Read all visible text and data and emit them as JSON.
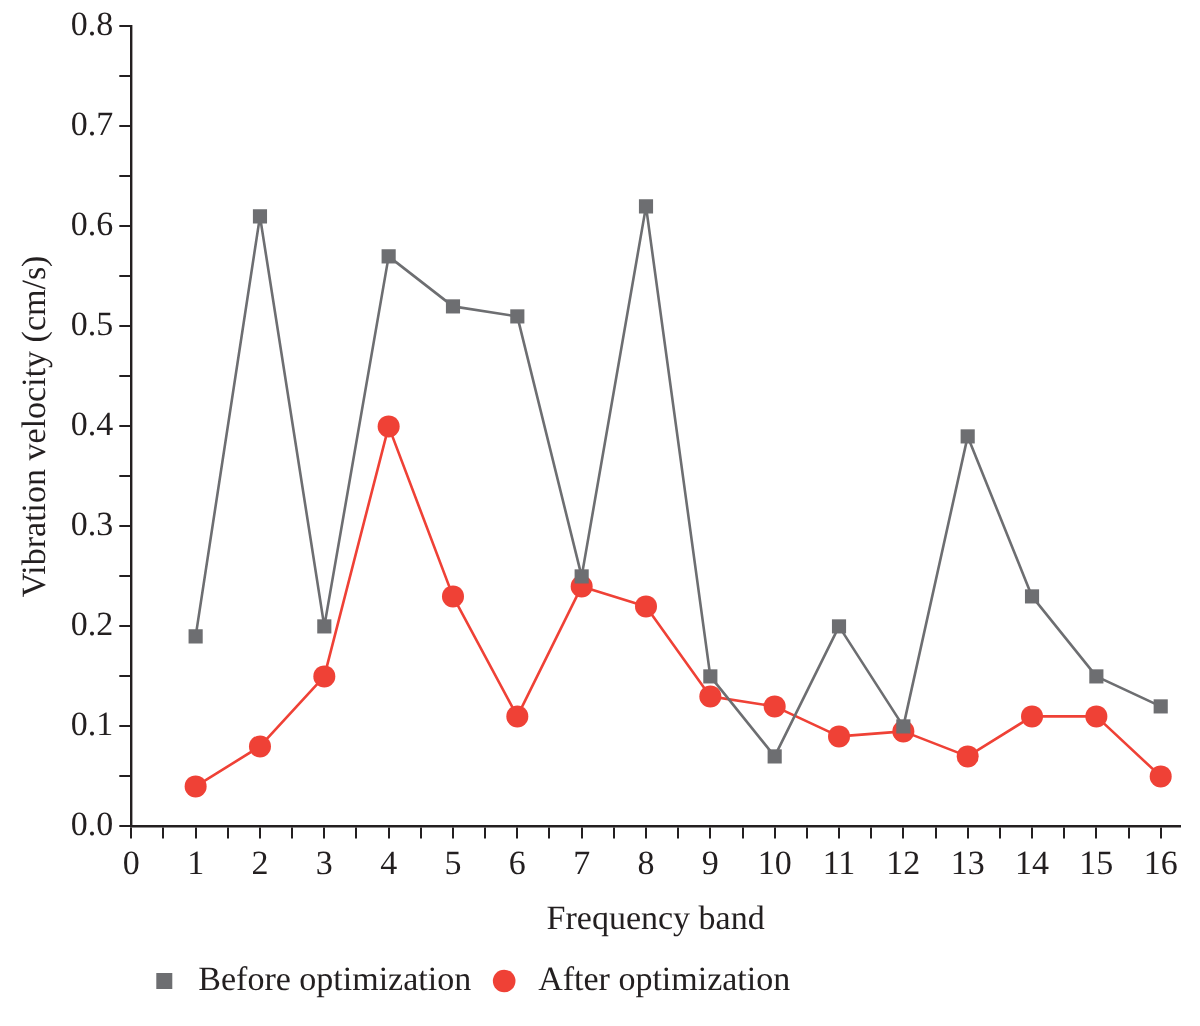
{
  "chart_data": {
    "type": "line",
    "xlabel": "Frequency band",
    "ylabel": "Vibration velocity (cm/s)",
    "x": [
      1,
      2,
      3,
      4,
      5,
      6,
      7,
      8,
      9,
      10,
      11,
      12,
      13,
      14,
      15,
      16
    ],
    "series": [
      {
        "name": "Before optimization",
        "color": "#6d6e71",
        "marker": "square",
        "values": [
          0.19,
          0.61,
          0.2,
          0.57,
          0.52,
          0.51,
          0.25,
          0.62,
          0.15,
          0.07,
          0.2,
          0.1,
          0.39,
          0.23,
          0.15,
          0.12
        ]
      },
      {
        "name": "After optimization",
        "color": "#ef4136",
        "marker": "circle",
        "values": [
          0.04,
          0.08,
          0.15,
          0.4,
          0.23,
          0.11,
          0.24,
          0.22,
          0.13,
          0.12,
          0.09,
          0.095,
          0.07,
          0.11,
          0.11,
          0.05
        ]
      }
    ],
    "xlim": [
      0,
      16.3
    ],
    "xticks": [
      0,
      {
        "value": 0.5,
        "label": null
      },
      1,
      {
        "value": 1.5,
        "label": null
      },
      2,
      {
        "value": 2.5,
        "label": null
      },
      3,
      {
        "value": 3.5,
        "label": null
      },
      4,
      {
        "value": 4.5,
        "label": null
      },
      5,
      {
        "value": 5.5,
        "label": null
      },
      6,
      {
        "value": 6.5,
        "label": null
      },
      7,
      {
        "value": 7.5,
        "label": null
      },
      8,
      {
        "value": 8.5,
        "label": null
      },
      9,
      {
        "value": 9.5,
        "label": null
      },
      10,
      {
        "value": 10.5,
        "label": null
      },
      11,
      {
        "value": 11.5,
        "label": null
      },
      12,
      {
        "value": 12.5,
        "label": null
      },
      13,
      {
        "value": 13.5,
        "label": null
      },
      14,
      {
        "value": 14.5,
        "label": null
      },
      15,
      {
        "value": 15.5,
        "label": null
      },
      16
    ],
    "ylim": [
      0,
      0.8
    ],
    "yticks": [
      {
        "value": 0,
        "label": "0.0"
      },
      {
        "value": 0.05,
        "label": null
      },
      0.1,
      {
        "value": 0.15,
        "label": null
      },
      0.2,
      {
        "value": 0.25,
        "label": null
      },
      0.3,
      {
        "value": 0.35,
        "label": null
      },
      0.4,
      {
        "value": 0.45,
        "label": null
      },
      0.5,
      {
        "value": 0.55,
        "label": null
      },
      0.6,
      {
        "value": 0.65,
        "label": null
      },
      0.7,
      {
        "value": 0.75,
        "label": null
      },
      0.8
    ],
    "grid": false,
    "legend": "bottom left",
    "line_style": "solid"
  }
}
